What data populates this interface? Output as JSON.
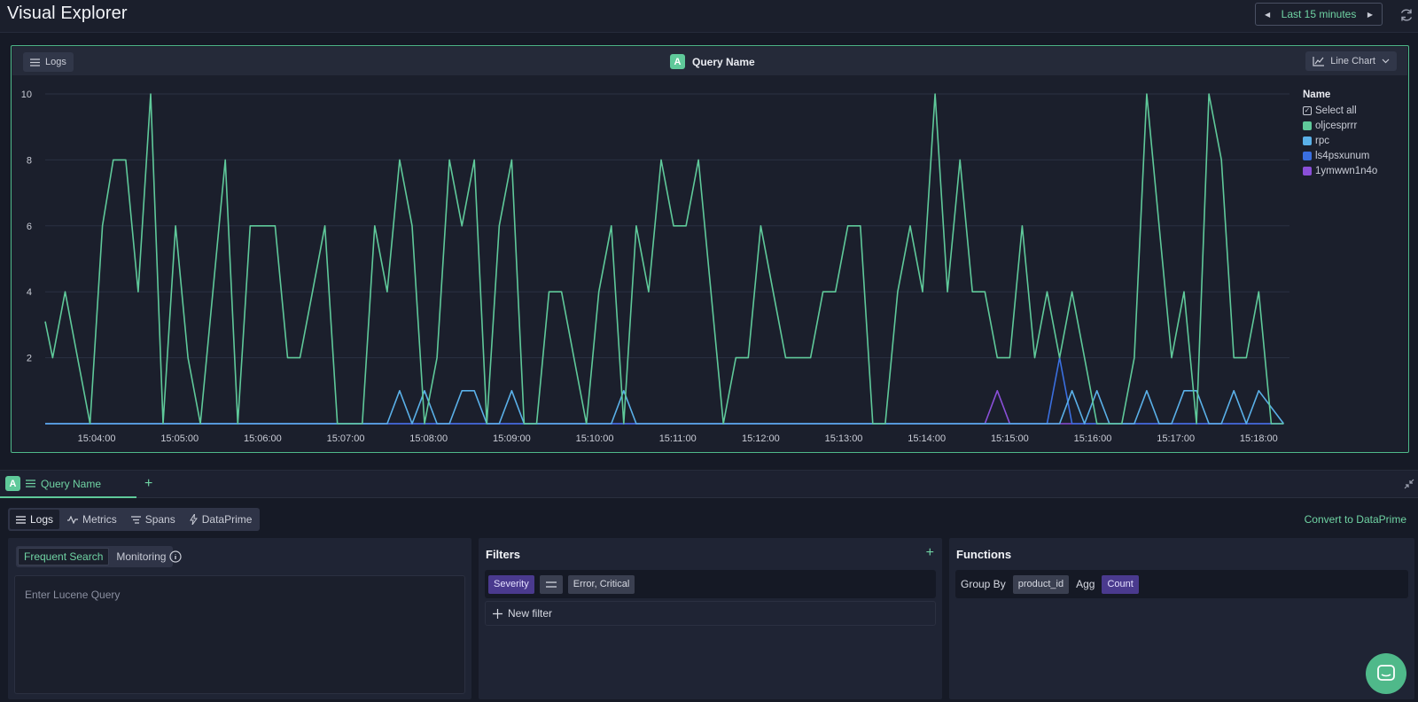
{
  "header": {
    "title": "Visual Explorer",
    "time_range": "Last 15 minutes"
  },
  "chart_panel": {
    "source_label": "Logs",
    "query_badge": "A",
    "query_name": "Query Name",
    "chart_type_label": "Line Chart"
  },
  "legend": {
    "title": "Name",
    "select_all": "Select all",
    "items": [
      {
        "label": "oljcesprrr",
        "color": "#5fc99a"
      },
      {
        "label": "rpc",
        "color": "#5ab0e8"
      },
      {
        "label": "ls4psxunum",
        "color": "#3a6fe0"
      },
      {
        "label": "1ymwwn1n4o",
        "color": "#8a4fd8"
      }
    ]
  },
  "chart_data": {
    "type": "line",
    "x_ticks": [
      "15:04:00",
      "15:05:00",
      "15:06:00",
      "15:07:00",
      "15:08:00",
      "15:09:00",
      "15:10:00",
      "15:11:00",
      "15:12:00",
      "15:13:00",
      "15:14:00",
      "15:15:00",
      "15:16:00",
      "15:17:00",
      "15:18:00"
    ],
    "y_ticks": [
      "2",
      "4",
      "6",
      "8",
      "10"
    ],
    "ylim": [
      0,
      10
    ],
    "xlim_minutes": [
      -0.62,
      14.37
    ],
    "grid": true,
    "legend_position": "right",
    "series": [
      {
        "name": "oljcesprrr",
        "color": "#5fc99a",
        "x": [
          -0.62,
          -0.53,
          -0.38,
          -0.23,
          -0.08,
          0.07,
          0.2,
          0.35,
          0.5,
          0.65,
          0.8,
          0.95,
          1.1,
          1.25,
          1.4,
          1.55,
          1.7,
          1.85,
          2.0,
          2.15,
          2.3,
          2.45,
          2.6,
          2.75,
          2.9,
          3.05,
          3.2,
          3.35,
          3.5,
          3.65,
          3.8,
          3.95,
          4.1,
          4.25,
          4.4,
          4.55,
          4.7,
          4.85,
          5.0,
          5.15,
          5.3,
          5.45,
          5.6,
          5.75,
          5.9,
          6.05,
          6.2,
          6.35,
          6.5,
          6.65,
          6.8,
          6.95,
          7.1,
          7.25,
          7.4,
          7.55,
          7.7,
          7.85,
          8.0,
          8.15,
          8.3,
          8.45,
          8.6,
          8.75,
          8.9,
          9.05,
          9.2,
          9.35,
          9.5,
          9.65,
          9.8,
          9.95,
          10.1,
          10.25,
          10.4,
          10.55,
          10.7,
          10.85,
          11.0,
          11.15,
          11.3,
          11.45,
          11.6,
          11.75,
          11.9,
          12.05,
          12.2,
          12.35,
          12.5,
          12.65,
          12.8,
          12.95,
          13.1,
          13.25,
          13.4,
          13.55,
          13.7,
          13.85,
          14.0,
          14.15,
          14.3
        ],
        "values": [
          3.1,
          2,
          4,
          2,
          0,
          6,
          8,
          8,
          4,
          10,
          0,
          6,
          2,
          0,
          4,
          8,
          0,
          6,
          6,
          6,
          2,
          2,
          4,
          6,
          0,
          0,
          0,
          6,
          4,
          8,
          6,
          0,
          2,
          8,
          6,
          8,
          0,
          6,
          8,
          0,
          0,
          4,
          4,
          2,
          0,
          4,
          6,
          0,
          6,
          4,
          8,
          6,
          6,
          8,
          4,
          0,
          2,
          2,
          6,
          4,
          2,
          2,
          2,
          4,
          4,
          6,
          6,
          0,
          0,
          4,
          6,
          4,
          10,
          4,
          8,
          4,
          4,
          2,
          2,
          6,
          2,
          4,
          2,
          4,
          2,
          0,
          0,
          0,
          2,
          10,
          6,
          2,
          4,
          0,
          10,
          8,
          2,
          2,
          4,
          0,
          0
        ]
      },
      {
        "name": "rpc",
        "color": "#5ab0e8",
        "x": [
          -0.62,
          3.5,
          3.65,
          3.8,
          3.95,
          4.1,
          4.25,
          4.4,
          4.55,
          4.7,
          4.85,
          5.0,
          5.15,
          5.3,
          6.05,
          6.2,
          6.35,
          6.5,
          11.45,
          11.6,
          11.75,
          11.9,
          12.05,
          12.2,
          12.35,
          12.5,
          12.65,
          12.8,
          12.95,
          13.1,
          13.25,
          13.4,
          13.55,
          13.7,
          13.85,
          14.0,
          14.3
        ],
        "values": [
          0,
          0,
          1,
          0,
          1,
          0,
          0,
          1,
          1,
          0,
          0,
          1,
          0,
          0,
          0,
          0,
          1,
          0,
          0,
          0,
          1,
          0,
          1,
          0,
          0,
          0,
          1,
          0,
          0,
          1,
          1,
          0,
          0,
          1,
          0,
          1,
          0
        ]
      },
      {
        "name": "ls4psxunum",
        "color": "#3a6fe0",
        "x": [
          -0.62,
          11.45,
          11.6,
          11.75,
          14.3
        ],
        "values": [
          0,
          0,
          2,
          0,
          0
        ]
      },
      {
        "name": "1ymwwn1n4o",
        "color": "#8a4fd8",
        "x": [
          -0.62,
          10.7,
          10.85,
          11.0,
          14.3
        ],
        "values": [
          0,
          0,
          1,
          0,
          0
        ]
      }
    ]
  },
  "query_tab": {
    "badge": "A",
    "name": "Query Name"
  },
  "source_tabs": [
    "Logs",
    "Metrics",
    "Spans",
    "DataPrime"
  ],
  "convert_link": "Convert to DataPrime",
  "search_panel": {
    "modes": [
      "Frequent Search",
      "Monitoring"
    ],
    "placeholder": "Enter Lucene Query"
  },
  "filters_panel": {
    "title": "Filters",
    "filter": {
      "field": "Severity",
      "values": "Error, Critical"
    },
    "new_filter": "New filter"
  },
  "functions_panel": {
    "title": "Functions",
    "group_by_label": "Group By",
    "group_by_value": "product_id",
    "agg_label": "Agg",
    "agg_value": "Count"
  }
}
